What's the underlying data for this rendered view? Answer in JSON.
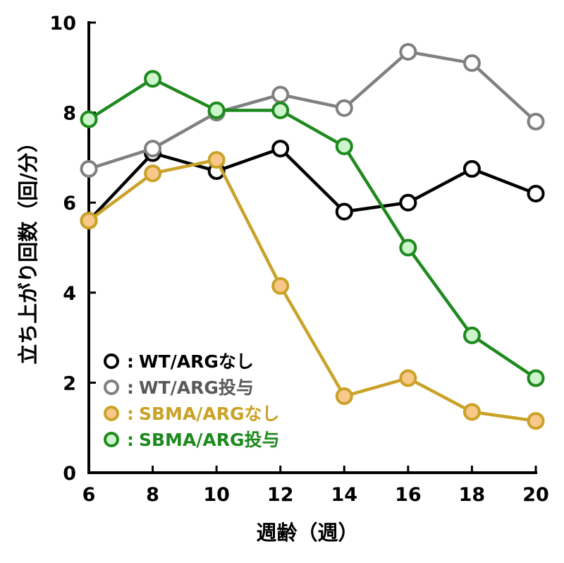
{
  "chart_data": {
    "type": "line",
    "xlabel": "週齢（週）",
    "ylabel": "立ち上がり回数（回/分）",
    "x": [
      6,
      8,
      10,
      12,
      14,
      16,
      18,
      20
    ],
    "xlim": [
      6,
      20
    ],
    "ylim": [
      0,
      10
    ],
    "xticks": [
      "6",
      "8",
      "10",
      "12",
      "14",
      "16",
      "18",
      "20"
    ],
    "yticks": [
      "0",
      "2",
      "4",
      "6",
      "8",
      "10"
    ],
    "grid": false,
    "legend_position": "bottom-left",
    "legend_separator": ":",
    "series": [
      {
        "name": "WT/ARGなし",
        "values": [
          5.6,
          7.1,
          6.7,
          7.2,
          5.8,
          6.0,
          6.75,
          6.2
        ],
        "line_color": "#000000",
        "marker_fill": "#ffffff",
        "text_color": "#000000"
      },
      {
        "name": "WT/ARG投与",
        "values": [
          6.75,
          7.2,
          8.0,
          8.4,
          8.1,
          9.35,
          9.1,
          7.8
        ],
        "line_color": "#808080",
        "marker_fill": "#ffffff",
        "text_color": "#595959"
      },
      {
        "name": "SBMA/ARGなし",
        "values": [
          5.6,
          6.65,
          6.95,
          4.15,
          1.7,
          2.1,
          1.35,
          1.15
        ],
        "line_color": "#c9a227",
        "marker_fill": "#f8c88a",
        "text_color": "#c9a227"
      },
      {
        "name": "SBMA/ARG投与",
        "values": [
          7.85,
          8.75,
          8.05,
          8.05,
          7.25,
          5.0,
          3.05,
          2.1
        ],
        "line_color": "#1e8a1e",
        "marker_fill": "#ccf5cc",
        "text_color": "#1e8a1e"
      }
    ]
  }
}
